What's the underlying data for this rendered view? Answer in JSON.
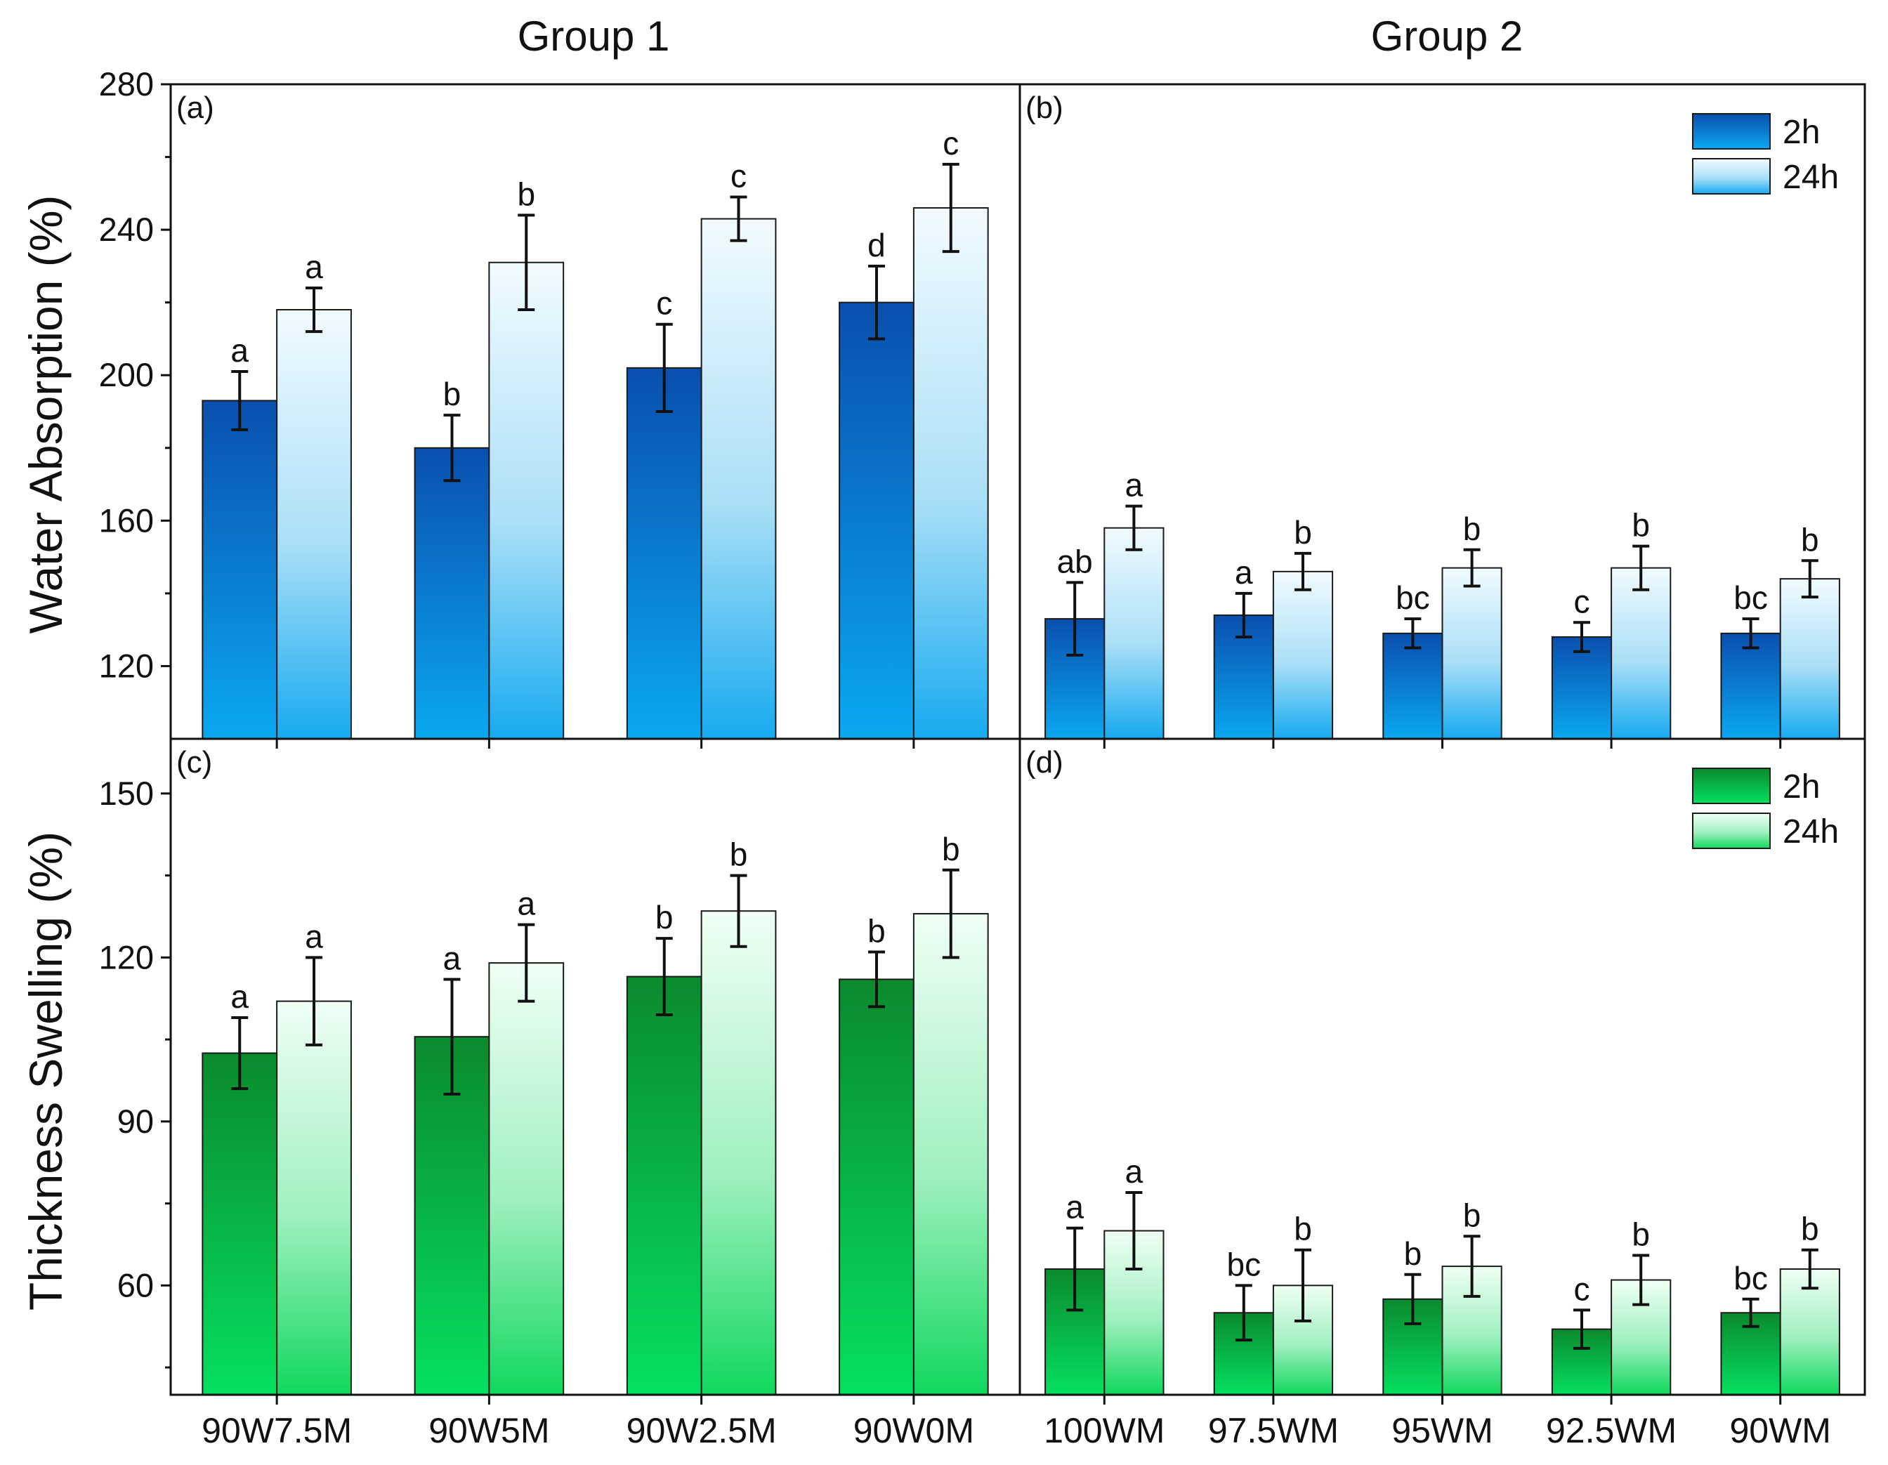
{
  "figure": {
    "group_titles": [
      "Group 1",
      "Group 2"
    ],
    "ylabel_top": "Water Absorption (%)",
    "ylabel_bottom": "Thickness Swelling (%)"
  },
  "colors": {
    "blue_dark": "#0a4fae",
    "blue_light": "#0aa8f0",
    "blue_24_top": "#f2fbff",
    "blue_24_bottom": "#16aaf0",
    "green_dark": "#0a8a2e",
    "green_light": "#05e060",
    "green_24_top": "#f0fff5",
    "green_24_bottom": "#10d85c",
    "axis": "#111111",
    "error_bar": "#111111"
  },
  "chart_data": [
    {
      "panel": "(a)",
      "type": "bar",
      "title": "Group 1",
      "xlabel": "",
      "ylabel": "Water Absorption (%)",
      "ylim": [
        100,
        280
      ],
      "yticks": [
        120,
        160,
        200,
        240,
        280
      ],
      "categories": [
        "90W7.5M",
        "90W5M",
        "90W2.5M",
        "90W0M"
      ],
      "series": [
        {
          "name": "2h",
          "values": [
            193,
            180,
            202,
            220
          ],
          "errors": [
            8,
            9,
            12,
            10
          ],
          "labels": [
            "a",
            "b",
            "c",
            "d"
          ]
        },
        {
          "name": "24h",
          "values": [
            218,
            231,
            243,
            246
          ],
          "errors": [
            6,
            13,
            6,
            12
          ],
          "labels": [
            "a",
            "b",
            "c",
            "c"
          ]
        }
      ],
      "legend": null
    },
    {
      "panel": "(b)",
      "type": "bar",
      "title": "Group 2",
      "xlabel": "",
      "ylabel": "Water Absorption (%)",
      "ylim": [
        100,
        280
      ],
      "yticks": [
        120,
        160,
        200,
        240,
        280
      ],
      "categories": [
        "100WM",
        "97.5WM",
        "95WM",
        "92.5WM",
        "90WM"
      ],
      "series": [
        {
          "name": "2h",
          "values": [
            133,
            134,
            129,
            128,
            129
          ],
          "errors": [
            10,
            6,
            4,
            4,
            4
          ],
          "labels": [
            "ab",
            "a",
            "bc",
            "c",
            "bc"
          ]
        },
        {
          "name": "24h",
          "values": [
            158,
            146,
            147,
            147,
            144
          ],
          "errors": [
            6,
            5,
            5,
            6,
            5
          ],
          "labels": [
            "a",
            "b",
            "b",
            "b",
            "b"
          ]
        }
      ],
      "legend": {
        "position": "top-right",
        "entries": [
          "2h",
          "24h"
        ]
      }
    },
    {
      "panel": "(c)",
      "type": "bar",
      "title": "Group 1",
      "xlabel": "",
      "ylabel": "Thickness Swelling (%)",
      "ylim": [
        40,
        160
      ],
      "yticks": [
        60,
        90,
        120,
        150
      ],
      "categories": [
        "90W7.5M",
        "90W5M",
        "90W2.5M",
        "90W0M"
      ],
      "series": [
        {
          "name": "2h",
          "values": [
            102.5,
            105.5,
            116.5,
            116
          ],
          "errors": [
            6.5,
            10.5,
            7,
            5
          ],
          "labels": [
            "a",
            "a",
            "b",
            "b"
          ]
        },
        {
          "name": "24h",
          "values": [
            112,
            119,
            128.5,
            128
          ],
          "errors": [
            8,
            7,
            6.5,
            8
          ],
          "labels": [
            "a",
            "a",
            "b",
            "b"
          ]
        }
      ],
      "legend": null
    },
    {
      "panel": "(d)",
      "type": "bar",
      "title": "Group 2",
      "xlabel": "",
      "ylabel": "Thickness Swelling (%)",
      "ylim": [
        40,
        160
      ],
      "yticks": [
        60,
        90,
        120,
        150
      ],
      "categories": [
        "100WM",
        "97.5WM",
        "95WM",
        "92.5WM",
        "90WM"
      ],
      "series": [
        {
          "name": "2h",
          "values": [
            63,
            55,
            57.5,
            52,
            55
          ],
          "errors": [
            7.5,
            5,
            4.5,
            3.5,
            2.5
          ],
          "labels": [
            "a",
            "bc",
            "b",
            "c",
            "bc"
          ]
        },
        {
          "name": "24h",
          "values": [
            70,
            60,
            63.5,
            61,
            63
          ],
          "errors": [
            7,
            6.5,
            5.5,
            4.5,
            3.5
          ],
          "labels": [
            "a",
            "b",
            "b",
            "b",
            "b"
          ]
        }
      ],
      "legend": {
        "position": "top-right",
        "entries": [
          "2h",
          "24h"
        ]
      }
    }
  ]
}
